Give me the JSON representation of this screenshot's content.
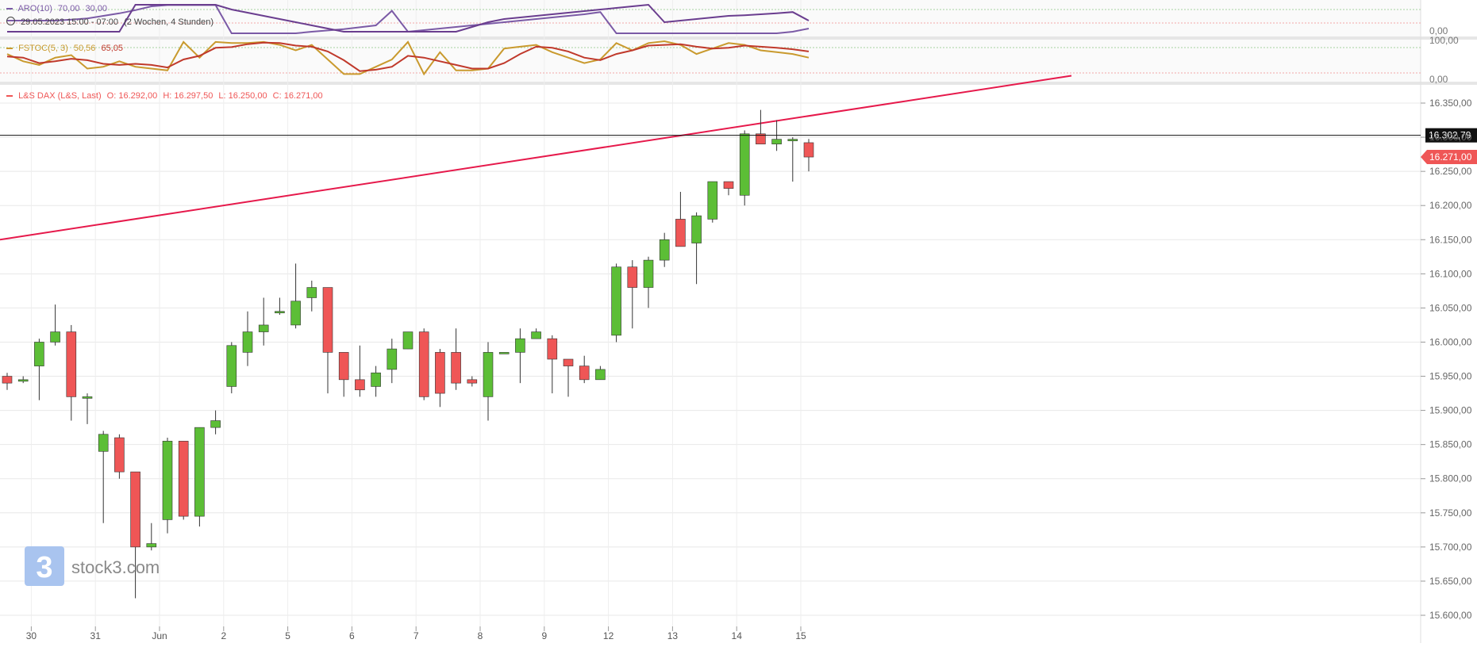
{
  "colors": {
    "up": "#5cbe36",
    "down": "#ef5656",
    "trendline": "#e6194b",
    "aro_up": "#7b5aa6",
    "aro_down": "#6a3d8f",
    "fstoc_k": "#c99a2e",
    "fstoc_d": "#c0392b",
    "price_badge": "#ef5656",
    "ref_badge": "#111111"
  },
  "aro_panel": {
    "title": "ARO(10)",
    "v1": "70,00",
    "v2": "30,00",
    "range_text": "29.05.2023 15:00 - 07:00",
    "duration": "(2 Wochen, 4 Stunden)",
    "axis_label": "0,00"
  },
  "fstoc_panel": {
    "title": "FSTOC(5, 3)",
    "v1": "50,56",
    "v2": "65,05",
    "axis_top": "100,00",
    "axis_bottom": "0,00"
  },
  "main_legend": {
    "name": "L&S DAX (L&S, Last)",
    "o": "O: 16.292,00",
    "h": "H: 16.297,50",
    "l": "L: 16.250,00",
    "c": "C: 16.271,00"
  },
  "watermark": "stock3.com",
  "chart_data": {
    "type": "candlestick",
    "x_ticks": [
      "30",
      "31",
      "Jun",
      "2",
      "5",
      "6",
      "7",
      "8",
      "9",
      "12",
      "13",
      "14",
      "15"
    ],
    "y_ticks": [
      "16.350,00",
      "16.300,00",
      "16.250,00",
      "16.200,00",
      "16.150,00",
      "16.100,00",
      "16.050,00",
      "16.000,00",
      "15.950,00",
      "15.900,00",
      "15.850,00",
      "15.800,00",
      "15.750,00",
      "15.700,00",
      "15.650,00",
      "15.600,00"
    ],
    "y_range": [
      15600,
      16350
    ],
    "ref_line": {
      "value": 16302.79,
      "label": "16.302,79"
    },
    "last_price": {
      "value": 16271,
      "label": "16.271,00"
    },
    "trendline": {
      "start": 16150,
      "end": 16390
    },
    "candles": [
      [
        15950,
        15940,
        15955,
        15930
      ],
      [
        15945,
        15945,
        15950,
        15940
      ],
      [
        15965,
        16000,
        16005,
        15915
      ],
      [
        16000,
        16015,
        16055,
        15995
      ],
      [
        16015,
        15920,
        16025,
        15885
      ],
      [
        15920,
        15920,
        15925,
        15880
      ],
      [
        15840,
        15865,
        15870,
        15735
      ],
      [
        15860,
        15810,
        15865,
        15800
      ],
      [
        15810,
        15700,
        15810,
        15625
      ],
      [
        15700,
        15705,
        15735,
        15695
      ],
      [
        15740,
        15855,
        15860,
        15720
      ],
      [
        15855,
        15745,
        15855,
        15740
      ],
      [
        15745,
        15875,
        15875,
        15730
      ],
      [
        15875,
        15885,
        15900,
        15865
      ],
      [
        15935,
        15995,
        16000,
        15925
      ],
      [
        15985,
        16015,
        16045,
        15965
      ],
      [
        16015,
        16025,
        16065,
        15995
      ],
      [
        16045,
        16045,
        16065,
        16040
      ],
      [
        16025,
        16060,
        16115,
        16020
      ],
      [
        16065,
        16080,
        16090,
        16045
      ],
      [
        16080,
        15985,
        16080,
        15925
      ],
      [
        15985,
        15945,
        15985,
        15920
      ],
      [
        15945,
        15930,
        15995,
        15920
      ],
      [
        15935,
        15955,
        15965,
        15920
      ],
      [
        15960,
        15990,
        16005,
        15940
      ],
      [
        15990,
        16015,
        16015,
        15990
      ],
      [
        16015,
        15920,
        16020,
        15915
      ],
      [
        15985,
        15925,
        15990,
        15905
      ],
      [
        15985,
        15940,
        16020,
        15930
      ],
      [
        15945,
        15940,
        15950,
        15935
      ],
      [
        15920,
        15985,
        16000,
        15885
      ],
      [
        15985,
        15985,
        15985,
        15985
      ],
      [
        15985,
        16005,
        16020,
        15940
      ],
      [
        16005,
        16015,
        16020,
        16005
      ],
      [
        16005,
        15975,
        16010,
        15925
      ],
      [
        15975,
        15965,
        15975,
        15920
      ],
      [
        15965,
        15945,
        15980,
        15940
      ],
      [
        15945,
        15960,
        15965,
        15945
      ],
      [
        16010,
        16110,
        16115,
        16000
      ],
      [
        16110,
        16080,
        16120,
        16020
      ],
      [
        16080,
        16120,
        16125,
        16050
      ],
      [
        16120,
        16150,
        16160,
        16110
      ],
      [
        16180,
        16140,
        16220,
        16140
      ],
      [
        16145,
        16185,
        16190,
        16085
      ],
      [
        16180,
        16235,
        16235,
        16175
      ],
      [
        16235,
        16225,
        16235,
        16215
      ],
      [
        16215,
        16305,
        16310,
        16200
      ],
      [
        16305,
        16290,
        16340,
        16290
      ],
      [
        16290,
        16297,
        16325,
        16280
      ],
      [
        16297,
        16297,
        16300,
        16235
      ],
      [
        16292,
        16271,
        16297.5,
        16250
      ]
    ],
    "aro": {
      "up": [
        0.45,
        0.45,
        0.45,
        0.45,
        0.48,
        0.52,
        0.6,
        0.68,
        0.78,
        0.9,
        0.94,
        0.94,
        0.94,
        0.94,
        0.05,
        0.05,
        0.05,
        0.05,
        0.05,
        0.1,
        0.14,
        0.18,
        0.24,
        0.3,
        0.76,
        0.1,
        0.15,
        0.2,
        0.25,
        0.3,
        0.35,
        0.4,
        0.45,
        0.5,
        0.55,
        0.6,
        0.65,
        0.72,
        0.05,
        0.05,
        0.05,
        0.05,
        0.05,
        0.05,
        0.05,
        0.05,
        0.05,
        0.05,
        0.05,
        0.1,
        0.2
      ],
      "down": [
        0.1,
        0.1,
        0.1,
        0.1,
        0.1,
        0.1,
        0.1,
        0.1,
        0.95,
        0.95,
        0.95,
        0.95,
        0.95,
        0.95,
        0.8,
        0.7,
        0.6,
        0.5,
        0.4,
        0.3,
        0.2,
        0.1,
        0.1,
        0.1,
        0.1,
        0.1,
        0.1,
        0.1,
        0.1,
        0.25,
        0.4,
        0.5,
        0.55,
        0.6,
        0.65,
        0.7,
        0.75,
        0.8,
        0.85,
        0.9,
        0.95,
        0.4,
        0.45,
        0.5,
        0.55,
        0.6,
        0.62,
        0.65,
        0.68,
        0.72,
        0.45
      ]
    },
    "fstoc": {
      "k": [
        0.65,
        0.45,
        0.35,
        0.55,
        0.62,
        0.25,
        0.3,
        0.45,
        0.3,
        0.25,
        0.2,
        0.98,
        0.55,
        0.98,
        0.95,
        0.95,
        0.98,
        0.9,
        0.75,
        0.9,
        0.5,
        0.1,
        0.1,
        0.3,
        0.5,
        0.98,
        0.1,
        0.7,
        0.2,
        0.2,
        0.25,
        0.8,
        0.85,
        0.9,
        0.7,
        0.55,
        0.4,
        0.5,
        0.95,
        0.75,
        0.95,
        1.0,
        0.9,
        0.65,
        0.8,
        0.95,
        0.9,
        0.75,
        0.7,
        0.65,
        0.55
      ],
      "d": [
        0.58,
        0.55,
        0.4,
        0.45,
        0.52,
        0.48,
        0.38,
        0.35,
        0.38,
        0.35,
        0.28,
        0.5,
        0.6,
        0.82,
        0.84,
        0.92,
        0.96,
        0.95,
        0.88,
        0.85,
        0.72,
        0.48,
        0.18,
        0.22,
        0.3,
        0.6,
        0.55,
        0.45,
        0.35,
        0.25,
        0.25,
        0.4,
        0.65,
        0.85,
        0.82,
        0.72,
        0.55,
        0.48,
        0.65,
        0.75,
        0.88,
        0.9,
        0.92,
        0.85,
        0.8,
        0.82,
        0.88,
        0.85,
        0.82,
        0.78,
        0.72
      ]
    }
  }
}
